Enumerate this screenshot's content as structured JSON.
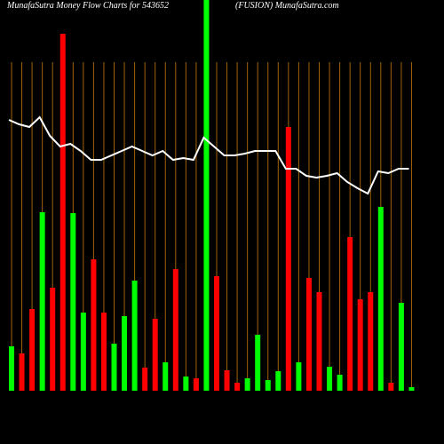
{
  "chart_data": {
    "type": "bar",
    "title": "MunafaSutra  Money Flow  Charts for 543652",
    "subtitle": "(FUSION) MunafaSutra.com",
    "grid": true,
    "grid_color": "#a0640a",
    "ylim": [
      0,
      440
    ],
    "values": [
      50,
      42,
      92,
      201,
      116,
      402,
      200,
      88,
      148,
      88,
      53,
      84,
      124,
      26,
      81,
      32,
      137,
      16,
      14,
      460,
      129,
      23,
      9,
      14,
      63,
      12,
      22,
      297,
      32,
      127,
      111,
      27,
      18,
      173,
      103,
      111,
      207,
      9,
      99,
      4
    ],
    "colors": [
      "#00ff00",
      "#ff0000",
      "#ff0000",
      "#00ff00",
      "#ff0000",
      "#ff0000",
      "#00ff00",
      "#00ff00",
      "#ff0000",
      "#ff0000",
      "#00ff00",
      "#00ff00",
      "#00ff00",
      "#ff0000",
      "#ff0000",
      "#00ff00",
      "#ff0000",
      "#00ff00",
      "#ff0000",
      "#00ff00",
      "#ff0000",
      "#ff0000",
      "#ff0000",
      "#00ff00",
      "#00ff00",
      "#00ff00",
      "#00ff00",
      "#ff0000",
      "#00ff00",
      "#ff0000",
      "#ff0000",
      "#00ff00",
      "#00ff00",
      "#ff0000",
      "#ff0000",
      "#ff0000",
      "#00ff00",
      "#ff0000",
      "#00ff00",
      "#00ff00"
    ],
    "line_color": "#ffffff",
    "line_values": [
      305,
      300,
      297,
      308,
      287,
      275,
      278,
      270,
      260,
      260,
      265,
      270,
      275,
      270,
      265,
      270,
      260,
      262,
      260,
      285,
      275,
      265,
      265,
      267,
      270,
      270,
      270,
      250,
      250,
      242,
      240,
      242,
      245,
      235,
      228,
      222,
      247,
      245,
      250,
      250
    ]
  }
}
